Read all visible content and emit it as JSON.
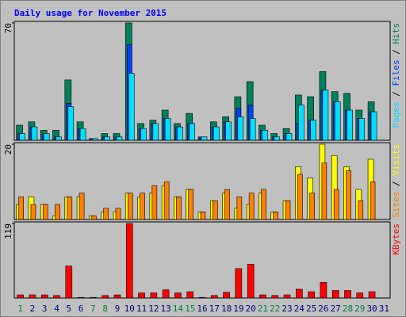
{
  "chart_data": {
    "type": "bar",
    "title": "Daily usage for November 2015",
    "categories": [
      "1",
      "2",
      "3",
      "4",
      "5",
      "6",
      "7",
      "8",
      "9",
      "10",
      "11",
      "12",
      "13",
      "14",
      "15",
      "16",
      "17",
      "18",
      "19",
      "20",
      "21",
      "22",
      "23",
      "24",
      "25",
      "26",
      "27",
      "28",
      "29",
      "30",
      "31"
    ],
    "category_color": "#000080",
    "highlight_color": "#008040",
    "highlight_categories": [
      0,
      6,
      7,
      13,
      14,
      20,
      21,
      27,
      28
    ],
    "legend_separator": " / ",
    "panels": [
      {
        "ylim": [
          0,
          70
        ],
        "yticks": [
          70
        ],
        "series": [
          {
            "name": "Hits",
            "color": "#00805c",
            "values": [
              9,
              11,
              6,
              6,
              36,
              11,
              1,
              4,
              4,
              70,
              10,
              12,
              18,
              10,
              16,
              2,
              11,
              14,
              26,
              35,
              9,
              4,
              7,
              27,
              26,
              41,
              29,
              28,
              18,
              23,
              0
            ]
          },
          {
            "name": "Files",
            "color": "#0040ff",
            "values": [
              4,
              8,
              4,
              2,
              22,
              7,
              1,
              2,
              2,
              57,
              7,
              10,
              13,
              8,
              10,
              2,
              8,
              11,
              19,
              21,
              6,
              2,
              4,
              10,
              12,
              30,
              23,
              18,
              13,
              17,
              0
            ]
          },
          {
            "name": "Pages",
            "color": "#00e0ff",
            "values": [
              4,
              8,
              4,
              2,
              20,
              7,
              1,
              2,
              2,
              40,
              7,
              10,
              13,
              8,
              10,
              2,
              8,
              11,
              14,
              13,
              6,
              2,
              4,
              21,
              12,
              30,
              23,
              18,
              13,
              17,
              0
            ]
          }
        ]
      },
      {
        "ylim": [
          0,
          20
        ],
        "yticks": [
          20
        ],
        "series": [
          {
            "name": "Visits",
            "color": "#ffff00",
            "values": [
              4,
              6,
              4,
              1,
              6,
              6,
              1,
              2,
              2,
              7,
              6,
              7,
              9,
              6,
              8,
              2,
              5,
              7,
              3,
              4,
              7,
              2,
              5,
              14,
              11,
              20,
              17,
              14,
              8,
              16,
              0
            ]
          },
          {
            "name": "Sites",
            "color": "#ff8000",
            "values": [
              6,
              4,
              4,
              4,
              6,
              7,
              1,
              3,
              3,
              7,
              7,
              9,
              10,
              6,
              8,
              2,
              5,
              8,
              6,
              7,
              8,
              2,
              5,
              12,
              7,
              15,
              8,
              13,
              5,
              10,
              0
            ]
          }
        ]
      },
      {
        "ylim": [
          0,
          119
        ],
        "yticks": [
          119
        ],
        "series": [
          {
            "name": "KBytes",
            "color": "#ff0000",
            "values": [
              5,
              5,
              5,
              4,
              51,
              1,
              1,
              4,
              5,
              119,
              8,
              8,
              13,
              8,
              10,
              1,
              4,
              9,
              47,
              54,
              5,
              4,
              5,
              14,
              10,
              25,
              12,
              12,
              8,
              10,
              0
            ]
          }
        ]
      }
    ]
  }
}
